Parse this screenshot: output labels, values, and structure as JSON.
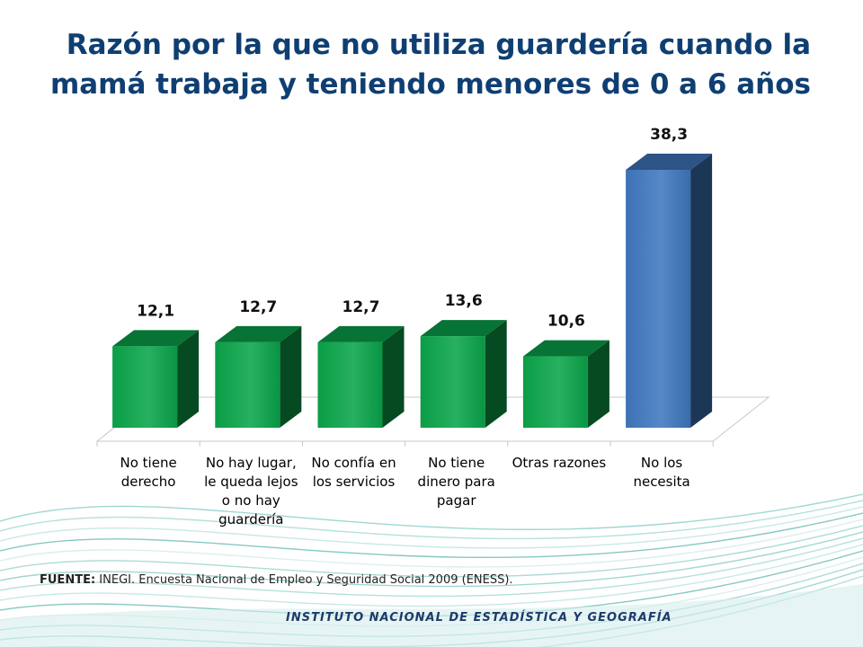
{
  "title": "Razón por la que no utiliza guardería cuando la mamá trabaja y teniendo menores de 0 a 6 años",
  "chart_data": {
    "type": "bar",
    "title": "Razón por la que no utiliza guardería cuando la mamá trabaja y teniendo menores de 0 a 6 años",
    "categories": [
      "No tiene derecho",
      "No hay lugar, le queda lejos o no hay guardería",
      "No confía en los servicios",
      "No tiene dinero para pagar",
      "Otras razones",
      "No los necesita"
    ],
    "values": [
      12.1,
      12.7,
      12.7,
      13.6,
      10.6,
      38.3
    ],
    "value_labels": [
      "12,1",
      "12,7",
      "12,7",
      "13,6",
      "10,6",
      "38,3"
    ],
    "bar_colors": [
      "#0aa54a",
      "#0aa54a",
      "#0aa54a",
      "#0aa54a",
      "#0aa54a",
      "#3f78bf"
    ],
    "xlabel": "",
    "ylabel": "",
    "ylim": [
      0,
      38.3
    ],
    "grid": false,
    "legend": false,
    "three_d": true
  },
  "source": {
    "prefix": "FUENTE:",
    "text": "INEGI. Encuesta Nacional de  Empleo y Seguridad Social 2009 (ENESS)."
  },
  "footer_brand": "INSTITUTO NACIONAL DE ESTADÍSTICA Y GEOGRAFÍA"
}
